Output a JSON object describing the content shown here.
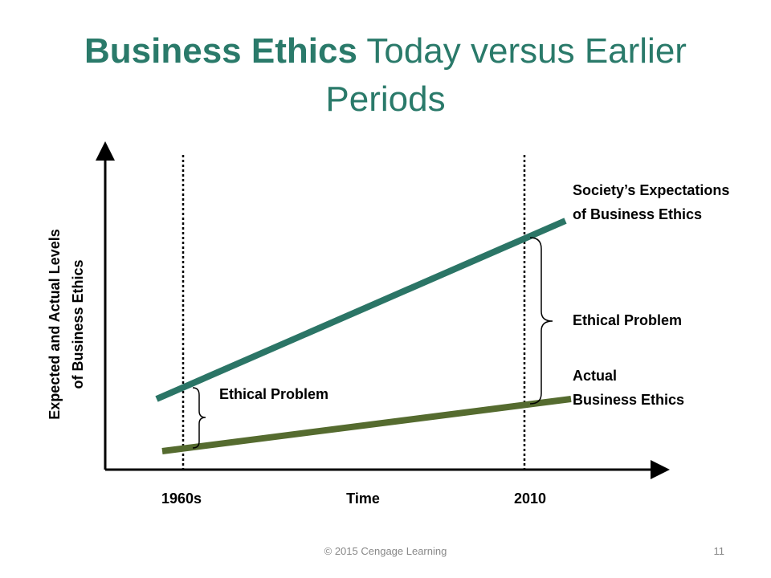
{
  "title": {
    "bold": "Business Ethics",
    "rest": "Today versus Earlier",
    "line2": "Periods"
  },
  "y_axis_label": {
    "line1": "Expected and Actual Levels",
    "line2": "of Business Ethics"
  },
  "x_labels": {
    "start": "1960s",
    "axis": "Time",
    "end": "2010"
  },
  "expectations_label": {
    "line1": "Society’s Expectations",
    "line2": "of Business Ethics"
  },
  "problem_right": "Ethical Problem",
  "actual_label": {
    "line1": "Actual",
    "line2": "Business Ethics"
  },
  "problem_left": "Ethical Problem",
  "footer": {
    "copyright": "© 2015 Cengage Learning",
    "page": "11"
  }
}
